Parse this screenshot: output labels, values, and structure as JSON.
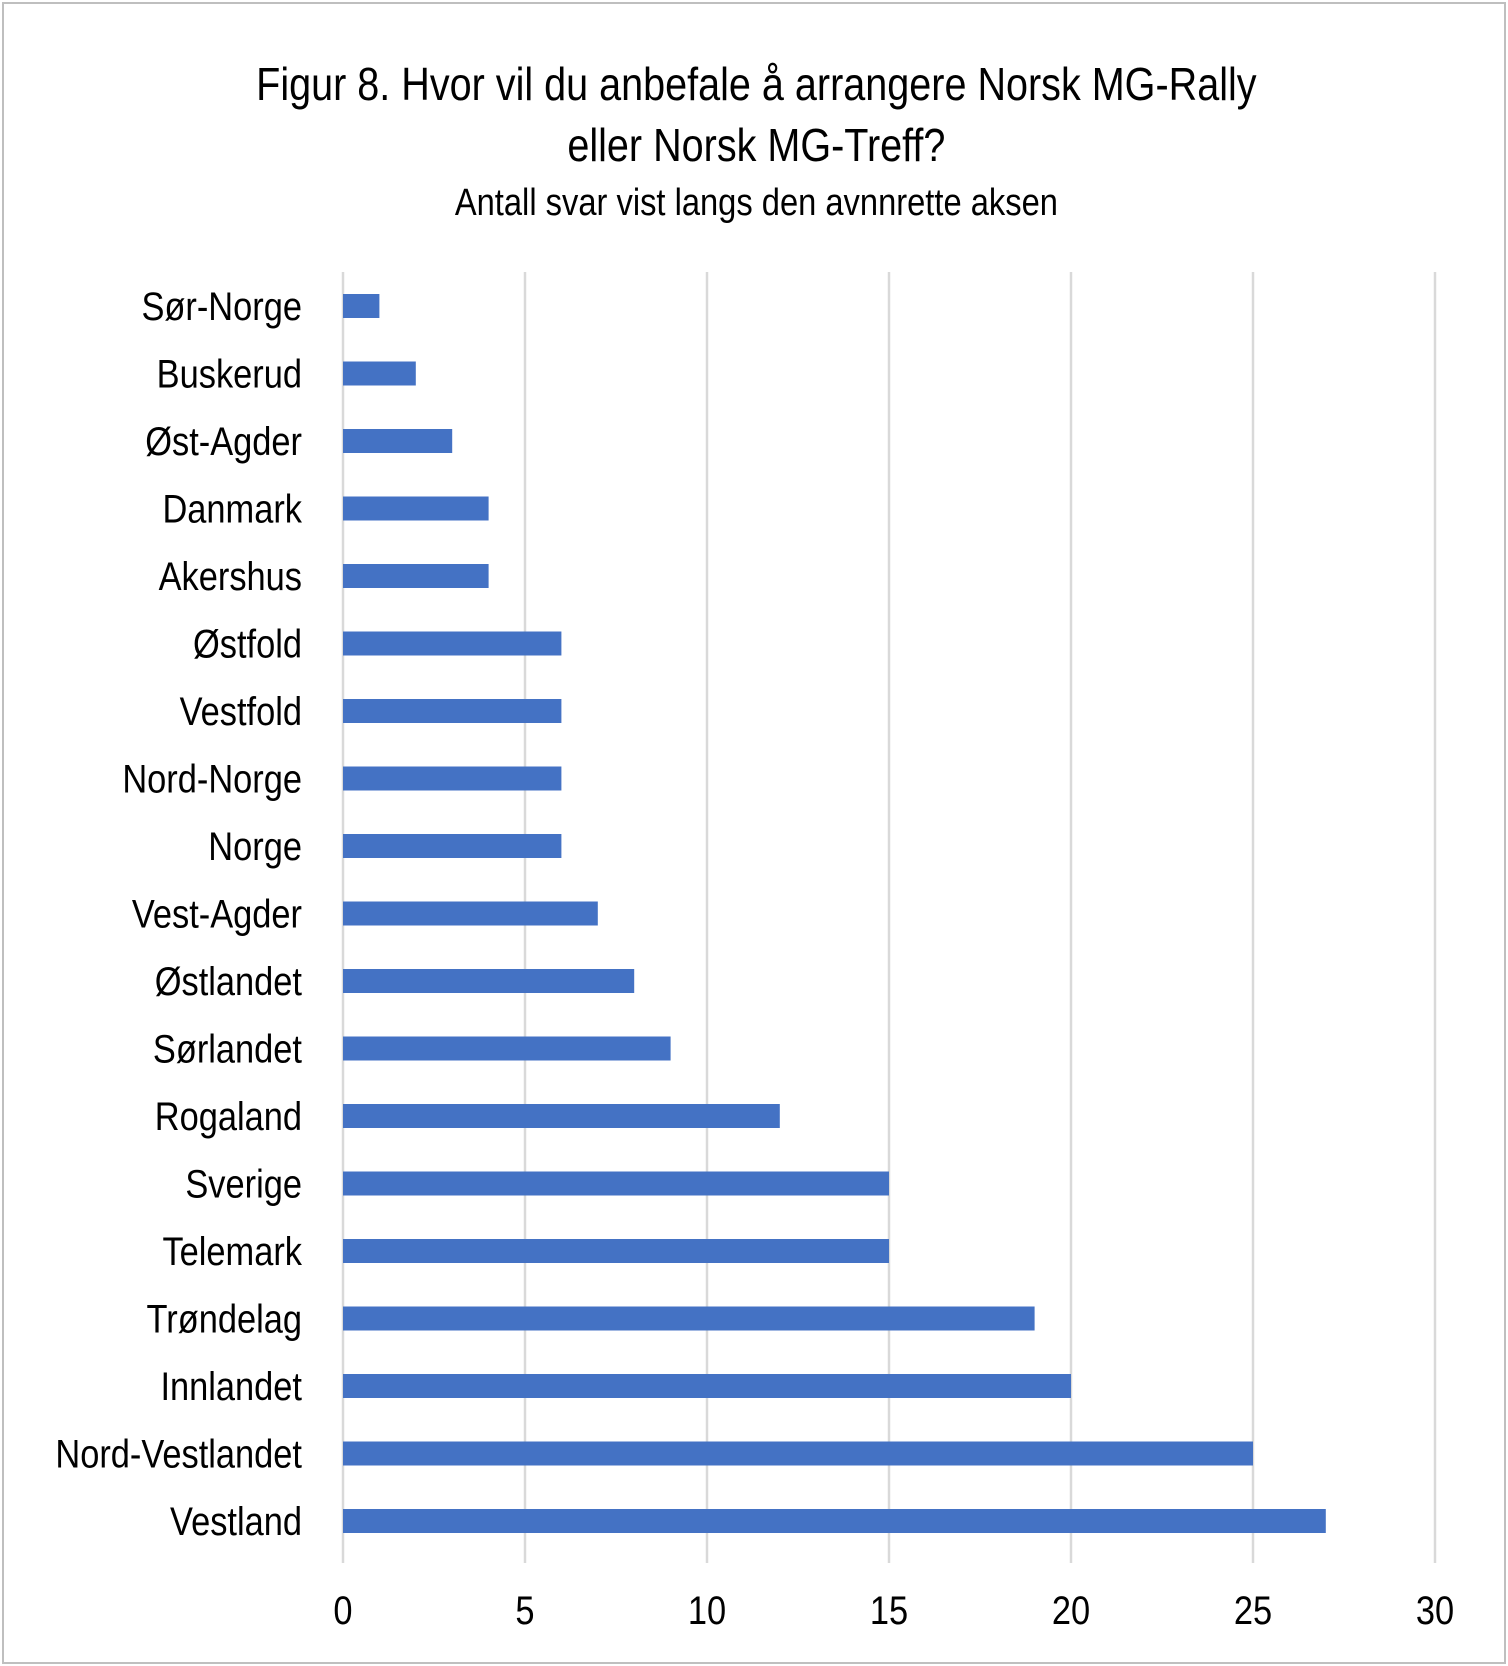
{
  "chart_data": {
    "type": "bar",
    "orientation": "horizontal",
    "title": "Figur 8. Hvor vil du anbefale å arrangere Norsk MG-Rally eller Norsk MG-Treff?",
    "title_lines": [
      "Figur 8. Hvor vil du anbefale å arrangere Norsk MG-Rally",
      "eller Norsk MG-Treff?"
    ],
    "subtitle": "Antall svar vist langs den avnnrette aksen",
    "xlabel": "",
    "ylabel": "",
    "xlim": [
      0,
      30
    ],
    "xticks": [
      "0",
      "5",
      "10",
      "15",
      "20",
      "25",
      "30"
    ],
    "grid": true,
    "bar_color": "#4472c4",
    "grid_color": "#d9d9d9",
    "categories": [
      "Sør-Norge",
      "Buskerud",
      "Øst-Agder",
      "Danmark",
      "Akershus",
      "Østfold",
      "Vestfold",
      "Nord-Norge",
      "Norge ",
      "Vest-Agder",
      "Østlandet ",
      "Sørlandet",
      "Rogaland",
      "Sverige ",
      "Telemark",
      "Trøndelag",
      "Innlandet",
      "Nord-Vestlandet",
      "Vestland"
    ],
    "values": [
      1,
      2,
      3,
      4,
      4,
      6,
      6,
      6,
      6,
      7,
      8,
      9,
      12,
      15,
      15,
      19,
      20,
      25,
      27
    ]
  }
}
